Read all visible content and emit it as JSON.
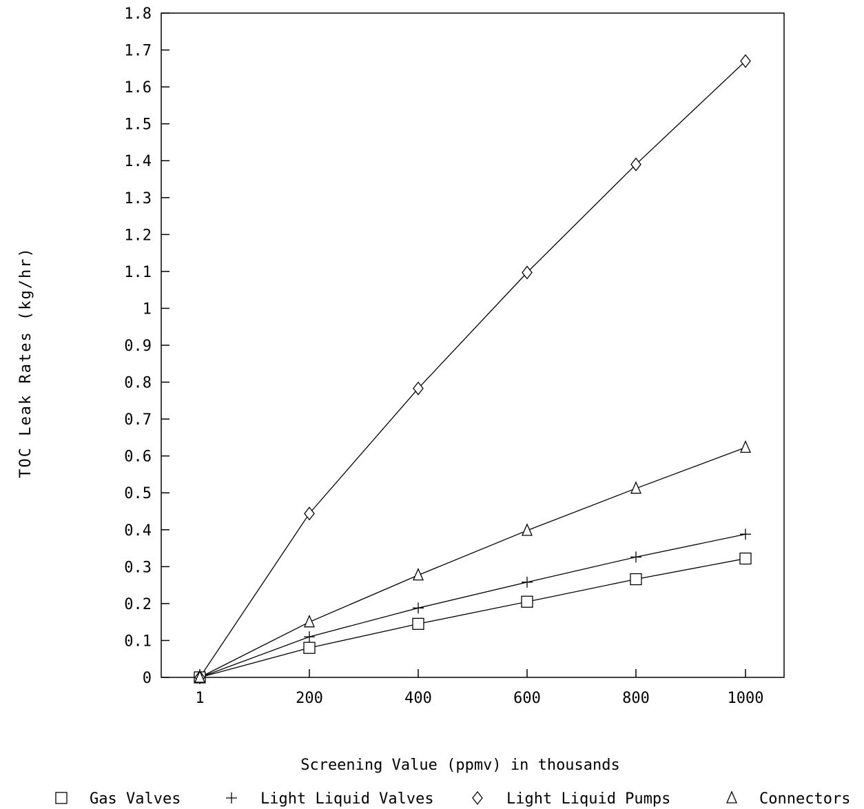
{
  "chart_data": {
    "type": "line",
    "xlabel": "Screening Value (ppmv) in thousands",
    "ylabel": "TOC Leak Rates (kg/hr)",
    "categories": [
      "1",
      "200",
      "400",
      "600",
      "800",
      "1000"
    ],
    "x": [
      1,
      200,
      400,
      600,
      800,
      1000
    ],
    "ylim": [
      0,
      1.8
    ],
    "yticks": [
      "0",
      "0.1",
      "0.2",
      "0.3",
      "0.4",
      "0.5",
      "0.6",
      "0.7",
      "0.8",
      "0.9",
      "1",
      "1.1",
      "1.2",
      "1.3",
      "1.4",
      "1.5",
      "1.6",
      "1.7",
      "1.8"
    ],
    "grid": false,
    "legend_position": "bottom",
    "series": [
      {
        "name": "Gas Valves",
        "marker": "square",
        "values": [
          0,
          0.08,
          0.145,
          0.205,
          0.266,
          0.322
        ]
      },
      {
        "name": "Light Liquid Valves",
        "marker": "plus",
        "values": [
          0,
          0.11,
          0.188,
          0.258,
          0.326,
          0.388
        ]
      },
      {
        "name": "Light Liquid Pumps",
        "marker": "diamond",
        "values": [
          0,
          0.444,
          0.783,
          1.097,
          1.39,
          1.67
        ]
      },
      {
        "name": "Connectors",
        "marker": "triangle",
        "values": [
          0,
          0.15,
          0.277,
          0.398,
          0.512,
          0.623
        ]
      }
    ]
  }
}
